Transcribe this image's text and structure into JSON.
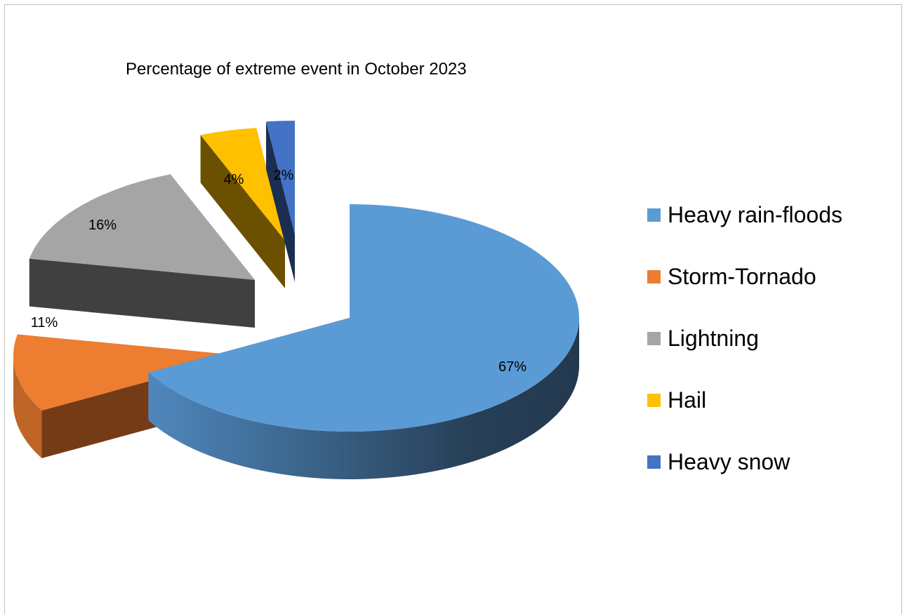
{
  "chart_data": {
    "type": "pie",
    "title": "Percentage of extreme event in October 2023",
    "categories": [
      "Heavy rain-floods",
      "Storm-Tornado",
      "Lightning",
      "Hail",
      "Heavy snow"
    ],
    "values": [
      67,
      11,
      16,
      4,
      2
    ],
    "data_labels": [
      "67%",
      "11%",
      "16%",
      "4%",
      "2%"
    ],
    "colors": [
      "#5b9bd5",
      "#ed7d31",
      "#a5a5a5",
      "#ffc000",
      "#4472c4"
    ],
    "legend_position": "right",
    "style": "3d-exploded"
  }
}
